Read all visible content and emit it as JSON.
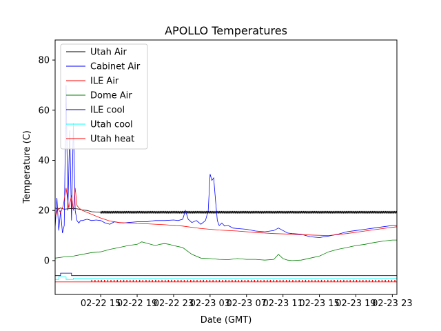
{
  "chart_data": {
    "type": "line",
    "title": "APOLLO Temperatures",
    "xlabel": "Date (GMT)",
    "ylabel": "Temperature (C)",
    "x_units": "hours since 02-22 00:00 GMT",
    "xlim": [
      10.0,
      47.5
    ],
    "ylim": [
      -13.5,
      88
    ],
    "yticks": [
      0,
      20,
      40,
      60,
      80
    ],
    "xticks": [
      {
        "x": 15,
        "label": "02-22 15"
      },
      {
        "x": 19,
        "label": "02-22 19"
      },
      {
        "x": 23,
        "label": "02-22 23"
      },
      {
        "x": 27,
        "label": "02-23 03"
      },
      {
        "x": 31,
        "label": "02-23 07"
      },
      {
        "x": 35,
        "label": "02-23 11"
      },
      {
        "x": 39,
        "label": "02-23 15"
      },
      {
        "x": 43,
        "label": "02-23 19"
      },
      {
        "x": 47,
        "label": "02-23 23"
      }
    ],
    "legend_position": "top-left",
    "series": [
      {
        "name": "Utah Air",
        "color": "#000000",
        "style": "sawtooth",
        "x": [
          10.0,
          10.3,
          10.6,
          11.0,
          11.5,
          12.0,
          12.5,
          13.0,
          13.5,
          14.0,
          14.5,
          15.0,
          47.5
        ],
        "y": [
          21,
          20.5,
          21,
          20.5,
          20.7,
          20.8,
          20.6,
          20.2,
          20.0,
          19.5,
          19.4,
          19.3,
          19.3
        ]
      },
      {
        "name": "Cabinet Air",
        "color": "#0000ff",
        "style": "line",
        "x": [
          10.0,
          10.2,
          10.4,
          10.6,
          10.8,
          11.0,
          11.2,
          11.4,
          11.6,
          11.8,
          12.0,
          12.2,
          12.4,
          12.6,
          12.8,
          13.0,
          13.5,
          14.0,
          14.5,
          15.0,
          15.5,
          16.0,
          16.5,
          17.0,
          17.5,
          18.0,
          19.0,
          20.0,
          21.0,
          22.0,
          23.0,
          23.5,
          24.0,
          24.3,
          24.6,
          25.0,
          25.5,
          26.0,
          26.5,
          26.8,
          27.0,
          27.2,
          27.4,
          27.6,
          27.8,
          28.0,
          28.3,
          28.6,
          29.0,
          29.5,
          30.0,
          31.0,
          32.0,
          33.0,
          34.0,
          34.5,
          35.0,
          35.5,
          36.0,
          37.0,
          38.0,
          39.0,
          40.0,
          41.0,
          42.0,
          43.0,
          44.0,
          45.0,
          46.0,
          47.0,
          47.5
        ],
        "y": [
          13,
          25,
          12,
          20,
          11,
          14,
          70,
          20,
          52,
          16,
          55,
          20,
          16,
          15,
          16,
          16,
          16.5,
          16,
          16.2,
          16,
          15,
          14.5,
          15.5,
          15.2,
          15,
          15.2,
          15.5,
          15.5,
          16,
          16,
          16.2,
          16,
          16.5,
          20,
          16.5,
          15.2,
          16,
          14.5,
          16,
          20,
          34.5,
          32,
          33,
          24,
          16,
          14,
          15,
          13.8,
          14,
          13,
          12.8,
          12.5,
          11.8,
          11.5,
          12,
          13,
          12,
          11,
          10.8,
          10.5,
          9.5,
          9.2,
          9.8,
          10.5,
          11.5,
          12,
          12.5,
          13,
          13.5,
          14,
          14
        ]
      },
      {
        "name": "ILE Air",
        "color": "#ff0000",
        "style": "line",
        "x": [
          10.0,
          10.3,
          10.6,
          10.9,
          11.2,
          11.5,
          11.8,
          12.0,
          12.2,
          12.4,
          12.6,
          13.0,
          14.0,
          15.0,
          16.0,
          17.0,
          18.0,
          19.0,
          20.0,
          22.0,
          24.0,
          25.0,
          26.0,
          28.0,
          30.0,
          32.0,
          34.0,
          36.0,
          38.0,
          40.0,
          42.0,
          44.0,
          46.0,
          47.5
        ],
        "y": [
          17,
          21,
          19,
          22,
          29,
          21,
          26,
          20,
          29,
          22,
          21,
          20,
          18.5,
          17,
          15.8,
          15.2,
          15.0,
          14.8,
          14.7,
          14.3,
          13.8,
          13.3,
          12.8,
          12.2,
          11.8,
          11.2,
          10.8,
          10.5,
          10.2,
          10.0,
          10.8,
          11.8,
          12.8,
          13.5
        ]
      },
      {
        "name": "Dome Air",
        "color": "#008000",
        "style": "line",
        "x": [
          10.0,
          11.0,
          12.0,
          13.0,
          14.0,
          15.0,
          16.0,
          17.0,
          18.0,
          19.0,
          19.5,
          20.0,
          21.0,
          21.5,
          22.0,
          22.5,
          23.0,
          24.0,
          25.0,
          26.0,
          27.0,
          28.0,
          29.0,
          30.0,
          31.0,
          32.0,
          33.0,
          34.0,
          34.5,
          35.0,
          35.5,
          36.0,
          37.0,
          38.0,
          39.0,
          40.0,
          41.0,
          42.0,
          43.0,
          44.0,
          45.0,
          46.0,
          47.0,
          47.5
        ],
        "y": [
          1,
          1.5,
          1.8,
          2.5,
          3.2,
          3.5,
          4.5,
          5.2,
          6,
          6.5,
          7.5,
          7,
          6,
          6.5,
          6.8,
          6.5,
          6,
          5.2,
          2.5,
          1,
          0.8,
          0.5,
          0.4,
          0.8,
          0.5,
          0.5,
          0.2,
          0.5,
          2.5,
          0.8,
          0.2,
          0,
          0.2,
          1,
          1.8,
          3.5,
          4.5,
          5.2,
          6,
          6.5,
          7.2,
          7.8,
          8.2,
          8.2
        ]
      },
      {
        "name": "ILE cool",
        "color": "#00008b",
        "style": "step",
        "x": [
          10.0,
          10.6,
          10.6,
          11.8,
          11.8,
          47.5
        ],
        "y": [
          -6,
          -6,
          -5,
          -5,
          -6,
          -6
        ]
      },
      {
        "name": "Utah cool",
        "color": "#00ffff",
        "style": "step",
        "x": [
          10.0,
          10.4,
          10.4,
          11.2,
          11.2,
          12.0,
          12.0,
          47.5
        ],
        "y": [
          -7.5,
          -7.5,
          -6.5,
          -6.5,
          -7.5,
          -7.5,
          -7,
          -7
        ]
      },
      {
        "name": "Utah heat",
        "color": "#ff0000",
        "style": "pulse",
        "x": [
          10.0,
          47.5
        ],
        "y": [
          -8.5,
          -8.5
        ],
        "pulse_high": -7.8,
        "pulse_start": 14.0,
        "pulse_period": 0.35
      }
    ]
  }
}
